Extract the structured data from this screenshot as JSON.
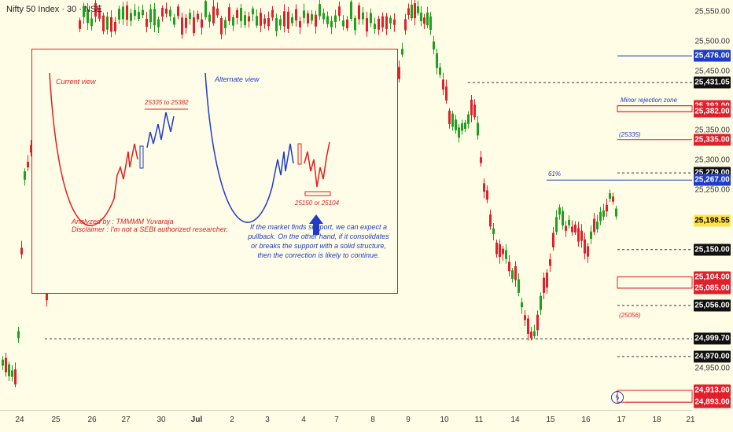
{
  "header": {
    "title": "Nifty 50 Index · 30 · NSE"
  },
  "y_axis": {
    "ticks": [
      "25,550.00",
      "25,500.00",
      "25,450.00",
      "25,350.00",
      "25,300.00",
      "25,250.00",
      "24,950.00"
    ],
    "price_boxes": [
      {
        "label": "25,476.00",
        "color": "#1e3cc8"
      },
      {
        "label": "25,431.05",
        "color": "#111111"
      },
      {
        "label": "25,392.00",
        "color": "#e0202a"
      },
      {
        "label": "25,382.00",
        "color": "#e0202a"
      },
      {
        "label": "25,335.00",
        "color": "#e0202a"
      },
      {
        "label": "25,279.00",
        "color": "#111111"
      },
      {
        "label": "25,267.00",
        "color": "#1e3cc8"
      },
      {
        "label": "25,198.55",
        "color": "#ffe24a",
        "text": "#000000"
      },
      {
        "label": "25,150.00",
        "color": "#111111"
      },
      {
        "label": "25,104.00",
        "color": "#e0202a"
      },
      {
        "label": "25,085.00",
        "color": "#e0202a"
      },
      {
        "label": "25,056.00",
        "color": "#111111"
      },
      {
        "label": "24,999.70",
        "color": "#111111"
      },
      {
        "label": "24,970.00",
        "color": "#111111"
      },
      {
        "label": "24,913.00",
        "color": "#e0202a"
      },
      {
        "label": "24,893.00",
        "color": "#e0202a"
      }
    ]
  },
  "x_axis": {
    "ticks": [
      "24",
      "25",
      "26",
      "27",
      "30",
      "Jul",
      "2",
      "3",
      "4",
      "7",
      "8",
      "9",
      "10",
      "11",
      "14",
      "15",
      "16",
      "17",
      "18",
      "21"
    ]
  },
  "annotations": {
    "minor_rejection": "Minor rejection zone",
    "level_25335": "(25335)",
    "fib": "61%",
    "level_25056": "(25056)"
  },
  "inset": {
    "current_view": "Current view",
    "alternate_view": "Alternate view",
    "target_up": "25335 to 25382",
    "target_down": "25150 or 25104",
    "analyst": "Analyzed by : TMMMM Yuvaraja",
    "disclaimer": "Disclaimer : I'm not a SEBI authorized researcher.",
    "note_line1": "If the market finds support, we can expect a",
    "note_line2": "pullback. On the other hand, if it consolidates",
    "note_line3": "or breaks the support with a solid structure,",
    "note_line4": "then the correction is likely to continue."
  },
  "colors": {
    "up": "#20a020",
    "down": "#e0202a",
    "blue": "#1e3cc8",
    "background": "#fffde6"
  },
  "chart_data": {
    "type": "candlestick",
    "title": "Nifty 50 Index · 30 · NSE",
    "ylim": [
      24880,
      25570
    ],
    "last_price": 25198.55,
    "levels": [
      25476,
      25431.05,
      25392,
      25382,
      25335,
      25279,
      25267,
      25150,
      25104,
      25085,
      25056,
      24999.7,
      24970,
      24913,
      24893
    ],
    "zones": [
      [
        25382,
        25392
      ],
      [
        25085,
        25104
      ],
      [
        24893,
        24913
      ]
    ],
    "series": [
      {
        "segment": "Jun 24 - Jun 25",
        "approx_range": [
          24930,
          25340
        ]
      },
      {
        "segment": "Jul 9",
        "approx_high": 25550
      },
      {
        "segment": "Jul 14",
        "approx_low": 25000
      },
      {
        "segment": "Jul 16 - Jul 17",
        "approx_close": 25198.55
      }
    ]
  }
}
